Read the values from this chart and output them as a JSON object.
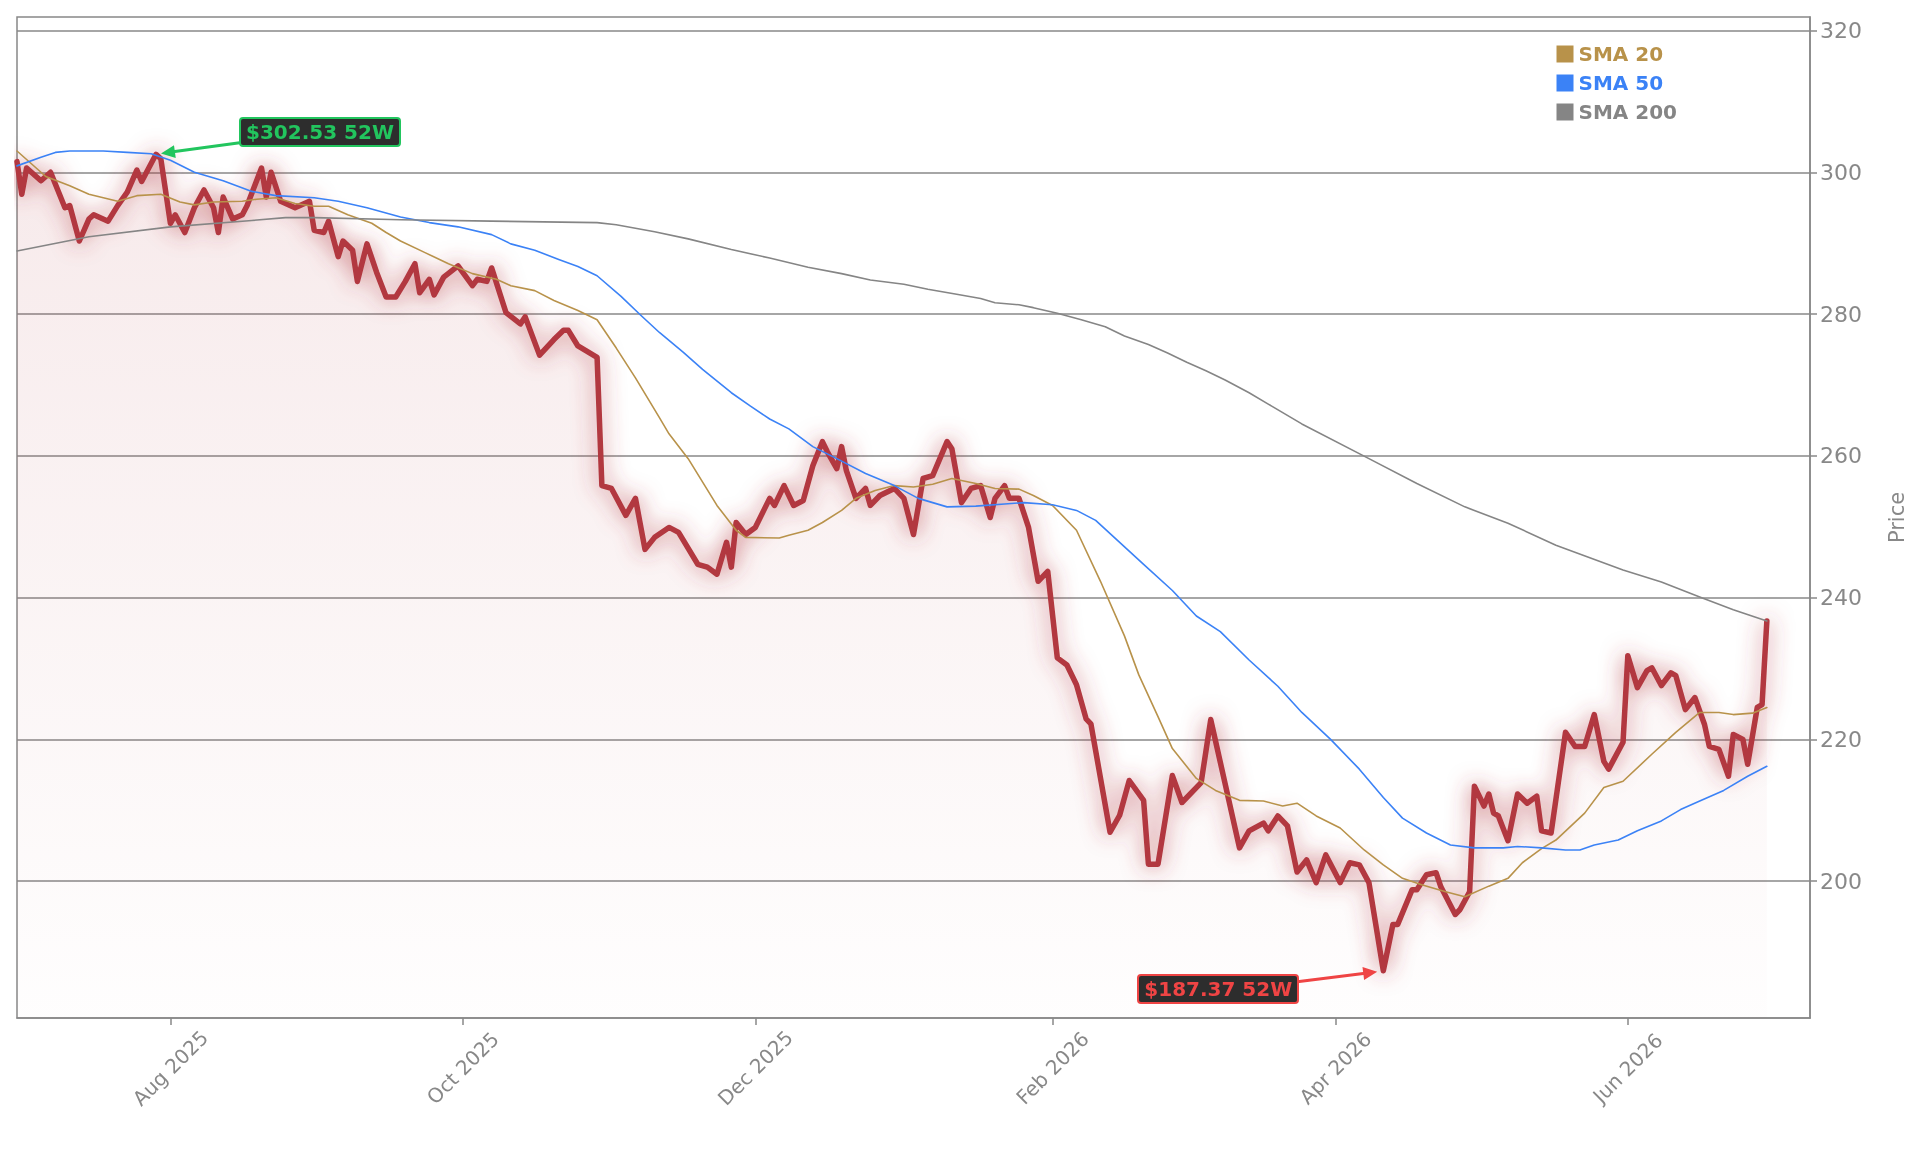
{
  "chart_data": {
    "type": "line",
    "ylabel": "Price",
    "xlim": [
      "2025-06-30",
      "2026-07-09"
    ],
    "xticks": [
      {
        "value": "2025-08-01",
        "label": "Aug 2025"
      },
      {
        "value": "2025-10-01",
        "label": "Oct 2025"
      },
      {
        "value": "2025-12-01",
        "label": "Dec 2025"
      },
      {
        "value": "2026-02-01",
        "label": "Feb 2026"
      },
      {
        "value": "2026-04-01",
        "label": "Apr 2026"
      },
      {
        "value": "2026-06-01",
        "label": "Jun 2026"
      }
    ],
    "ylim": [
      180.7,
      321.9
    ],
    "yticks": [
      200,
      220,
      240,
      260,
      280,
      300,
      320
    ],
    "grid": "y",
    "legend": "top right",
    "marker": "none",
    "annotations": [
      "$302.53 52W",
      "$187.37 52W"
    ],
    "series": [
      {
        "type": "area",
        "color": "#b2373f",
        "x": [
          "2025-06-30",
          "2025-07-01",
          "2025-07-02",
          "2025-07-05",
          "2025-07-07",
          "2025-07-10",
          "2025-07-11",
          "2025-07-13",
          "2025-07-15",
          "2025-07-16",
          "2025-07-19",
          "2025-07-21",
          "2025-07-23",
          "2025-07-25",
          "2025-07-26",
          "2025-07-29",
          "2025-07-30",
          "2025-08-01",
          "2025-08-02",
          "2025-08-04",
          "2025-08-06",
          "2025-08-08",
          "2025-08-10",
          "2025-08-11",
          "2025-08-12",
          "2025-08-14",
          "2025-08-16",
          "2025-08-17",
          "2025-08-20",
          "2025-08-21",
          "2025-08-22",
          "2025-08-24",
          "2025-08-27",
          "2025-08-30",
          "2025-08-31",
          "2025-09-02",
          "2025-09-03",
          "2025-09-05",
          "2025-09-06",
          "2025-09-08",
          "2025-09-09",
          "2025-09-11",
          "2025-09-13",
          "2025-09-15",
          "2025-09-17",
          "2025-09-19",
          "2025-09-21",
          "2025-09-22",
          "2025-09-24",
          "2025-09-25",
          "2025-09-27",
          "2025-09-30",
          "2025-10-03",
          "2025-10-04",
          "2025-10-06",
          "2025-10-07",
          "2025-10-10",
          "2025-10-13",
          "2025-10-14",
          "2025-10-17",
          "2025-10-20",
          "2025-10-22",
          "2025-10-23",
          "2025-10-25",
          "2025-10-29",
          "2025-10-30",
          "2025-11-01",
          "2025-11-04",
          "2025-11-06",
          "2025-11-08",
          "2025-11-10",
          "2025-11-13",
          "2025-11-15",
          "2025-11-19",
          "2025-11-21",
          "2025-11-23",
          "2025-11-25",
          "2025-11-26",
          "2025-11-27",
          "2025-11-29",
          "2025-12-01",
          "2025-12-04",
          "2025-12-05",
          "2025-12-07",
          "2025-12-09",
          "2025-12-11",
          "2025-12-13",
          "2025-12-15",
          "2025-12-16",
          "2025-12-18",
          "2025-12-19",
          "2025-12-20",
          "2025-12-22",
          "2025-12-24",
          "2025-12-25",
          "2025-12-27",
          "2025-12-30",
          "2026-01-01",
          "2026-01-03",
          "2026-01-05",
          "2026-01-07",
          "2026-01-10",
          "2026-01-11",
          "2026-01-13",
          "2026-01-15",
          "2026-01-17",
          "2026-01-19",
          "2026-01-20",
          "2026-01-22",
          "2026-01-23",
          "2026-01-25",
          "2026-01-27",
          "2026-01-29",
          "2026-01-31",
          "2026-02-02",
          "2026-02-04",
          "2026-02-06",
          "2026-02-08",
          "2026-02-09",
          "2026-02-13",
          "2026-02-15",
          "2026-02-17",
          "2026-02-20",
          "2026-02-21",
          "2026-02-23",
          "2026-02-26",
          "2026-02-28",
          "2026-03-04",
          "2026-03-06",
          "2026-03-12",
          "2026-03-14",
          "2026-03-17",
          "2026-03-18",
          "2026-03-20",
          "2026-03-22",
          "2026-03-24",
          "2026-03-26",
          "2026-03-28",
          "2026-03-30",
          "2026-04-02",
          "2026-04-04",
          "2026-04-06",
          "2026-04-08",
          "2026-04-11",
          "2026-04-13",
          "2026-04-14",
          "2026-04-17",
          "2026-04-18",
          "2026-04-20",
          "2026-04-22",
          "2026-04-23",
          "2026-04-26",
          "2026-04-27",
          "2026-04-29",
          "2026-04-30",
          "2026-05-02",
          "2026-05-03",
          "2026-05-04",
          "2026-05-05",
          "2026-05-07",
          "2026-05-09",
          "2026-05-11",
          "2026-05-13",
          "2026-05-14",
          "2026-05-16",
          "2026-05-19",
          "2026-05-21",
          "2026-05-23",
          "2026-05-25",
          "2026-05-27",
          "2026-05-28",
          "2026-05-31",
          "2026-06-01",
          "2026-06-03",
          "2026-06-05",
          "2026-06-06",
          "2026-06-08",
          "2026-06-10",
          "2026-06-11",
          "2026-06-13",
          "2026-06-15",
          "2026-06-17",
          "2026-06-18",
          "2026-06-20",
          "2026-06-22",
          "2026-06-23",
          "2026-06-25",
          "2026-06-26",
          "2026-06-28",
          "2026-06-29",
          "2026-06-30"
        ],
        "values": [
          301.5,
          296.9,
          300.6,
          298.8,
          300.0,
          295.0,
          295.3,
          290.3,
          293.4,
          294.0,
          293.1,
          295.3,
          297.2,
          300.3,
          298.7,
          302.53,
          301.9,
          292.8,
          294.0,
          291.5,
          295.0,
          297.5,
          295.0,
          291.5,
          296.5,
          293.4,
          294.0,
          295.3,
          300.6,
          296.5,
          300.0,
          295.9,
          295.0,
          295.9,
          291.8,
          291.5,
          293.1,
          288.1,
          290.3,
          289.0,
          284.6,
          289.9,
          285.9,
          282.4,
          282.4,
          284.6,
          287.1,
          283.0,
          284.9,
          282.7,
          285.2,
          286.8,
          284.0,
          284.9,
          284.6,
          286.5,
          280.2,
          278.6,
          279.6,
          274.2,
          276.4,
          277.7,
          277.7,
          275.5,
          273.9,
          255.8,
          255.4,
          251.6,
          254.0,
          246.8,
          248.5,
          249.9,
          249.2,
          244.7,
          244.3,
          243.3,
          247.8,
          244.3,
          250.6,
          248.9,
          249.9,
          254.0,
          253.0,
          255.8,
          253.0,
          253.7,
          258.6,
          262.0,
          260.6,
          258.2,
          261.3,
          257.9,
          254.0,
          255.4,
          253.0,
          254.4,
          255.4,
          254.0,
          248.9,
          256.8,
          257.2,
          262.0,
          261.0,
          253.4,
          255.4,
          255.8,
          251.3,
          254.0,
          255.8,
          254.0,
          254.0,
          249.9,
          242.3,
          243.7,
          231.5,
          230.5,
          227.7,
          222.9,
          222.2,
          206.9,
          209.3,
          214.2,
          211.4,
          202.4,
          202.4,
          214.9,
          211.1,
          213.9,
          222.8,
          204.7,
          207.1,
          208.2,
          207.1,
          209.2,
          207.8,
          201.3,
          203.0,
          199.8,
          203.7,
          199.8,
          202.6,
          202.3,
          199.8,
          187.37,
          193.9,
          193.9,
          198.8,
          198.8,
          200.9,
          201.2,
          199.2,
          195.3,
          196.0,
          198.5,
          213.4,
          210.6,
          212.3,
          209.6,
          209.2,
          205.7,
          212.3,
          211.0,
          212.0,
          207.1,
          206.8,
          221.0,
          219.0,
          219.0,
          223.5,
          216.9,
          215.8,
          219.6,
          231.8,
          227.3,
          229.7,
          230.1,
          227.6,
          229.4,
          229.0,
          224.2,
          225.9,
          222.1,
          219.0,
          218.6,
          214.8,
          220.7,
          220.0,
          216.5,
          224.5,
          224.9,
          236.7
        ]
      },
      {
        "name": "SMA 20",
        "type": "line",
        "color": "#b8924a",
        "x": [
          "2025-06-30",
          "2025-07-06",
          "2025-07-11",
          "2025-07-15",
          "2025-07-21",
          "2025-07-25",
          "2025-07-30",
          "2025-08-03",
          "2025-08-06",
          "2025-08-10",
          "2025-08-16",
          "2025-08-19",
          "2025-08-23",
          "2025-08-27",
          "2025-08-31",
          "2025-09-03",
          "2025-09-07",
          "2025-09-12",
          "2025-09-15",
          "2025-09-18",
          "2025-09-23",
          "2025-09-28",
          "2025-10-03",
          "2025-10-08",
          "2025-10-11",
          "2025-10-16",
          "2025-10-20",
          "2025-10-25",
          "2025-10-29",
          "2025-11-02",
          "2025-11-06",
          "2025-11-11",
          "2025-11-13",
          "2025-11-17",
          "2025-11-23",
          "2025-11-27",
          "2025-11-29",
          "2025-12-06",
          "2025-12-08",
          "2025-12-12",
          "2025-12-15",
          "2025-12-19",
          "2025-12-22",
          "2025-12-26",
          "2025-12-30",
          "2026-01-03",
          "2026-01-07",
          "2026-01-11",
          "2026-01-16",
          "2026-01-20",
          "2026-01-25",
          "2026-01-28",
          "2026-02-01",
          "2026-02-06",
          "2026-02-11",
          "2026-02-16",
          "2026-02-19",
          "2026-02-23",
          "2026-02-26",
          "2026-03-03",
          "2026-03-07",
          "2026-03-12",
          "2026-03-17",
          "2026-03-21",
          "2026-03-24",
          "2026-03-28",
          "2026-04-02",
          "2026-04-07",
          "2026-04-11",
          "2026-04-15",
          "2026-04-19",
          "2026-04-24",
          "2026-04-28",
          "2026-05-03",
          "2026-05-07",
          "2026-05-10",
          "2026-05-14",
          "2026-05-17",
          "2026-05-23",
          "2026-05-27",
          "2026-05-31",
          "2026-06-06",
          "2026-06-11",
          "2026-06-16",
          "2026-06-20",
          "2026-06-23",
          "2026-06-27",
          "2026-06-30"
        ],
        "values": [
          303.0,
          299.4,
          298.1,
          296.9,
          295.9,
          296.7,
          296.9,
          295.8,
          295.4,
          295.8,
          295.9,
          296.2,
          296.4,
          295.6,
          295.2,
          295.2,
          294.0,
          292.8,
          291.5,
          290.3,
          288.7,
          287.1,
          285.7,
          284.9,
          284.0,
          283.3,
          281.9,
          280.5,
          279.2,
          275.2,
          271.0,
          265.4,
          263.1,
          259.6,
          253.0,
          249.5,
          248.5,
          248.4,
          248.8,
          249.5,
          250.6,
          252.3,
          254.0,
          255.1,
          255.8,
          255.6,
          256.0,
          256.8,
          256.1,
          255.4,
          255.3,
          254.4,
          253.0,
          249.5,
          242.3,
          234.6,
          229.1,
          223.2,
          218.7,
          214.5,
          212.8,
          211.4,
          211.3,
          210.6,
          211.0,
          209.2,
          207.5,
          204.4,
          202.3,
          200.4,
          199.5,
          198.5,
          197.8,
          199.3,
          200.4,
          202.6,
          204.6,
          205.8,
          209.6,
          213.2,
          214.1,
          217.9,
          221.0,
          223.8,
          223.8,
          223.5,
          223.7,
          224.5
        ]
      },
      {
        "name": "SMA 50",
        "type": "line",
        "color": "#3b82f6",
        "x": [
          "2025-06-30",
          "2025-07-05",
          "2025-07-08",
          "2025-07-11",
          "2025-07-18",
          "2025-07-23",
          "2025-07-28",
          "2025-08-01",
          "2025-08-06",
          "2025-08-12",
          "2025-08-18",
          "2025-08-23",
          "2025-08-31",
          "2025-09-05",
          "2025-09-11",
          "2025-09-18",
          "2025-09-24",
          "2025-09-30",
          "2025-10-07",
          "2025-10-11",
          "2025-10-16",
          "2025-10-21",
          "2025-10-25",
          "2025-10-29",
          "2025-11-03",
          "2025-11-07",
          "2025-11-11",
          "2025-11-16",
          "2025-11-20",
          "2025-11-26",
          "2025-11-30",
          "2025-12-04",
          "2025-12-08",
          "2025-12-13",
          "2025-12-18",
          "2025-12-24",
          "2025-12-30",
          "2026-01-04",
          "2026-01-10",
          "2026-01-16",
          "2026-01-22",
          "2026-01-26",
          "2026-02-01",
          "2026-02-06",
          "2026-02-10",
          "2026-02-15",
          "2026-02-20",
          "2026-02-26",
          "2026-03-03",
          "2026-03-08",
          "2026-03-14",
          "2026-03-20",
          "2026-03-25",
          "2026-03-31",
          "2026-04-06",
          "2026-04-11",
          "2026-04-15",
          "2026-04-20",
          "2026-04-25",
          "2026-04-30",
          "2026-05-06",
          "2026-05-09",
          "2026-05-14",
          "2026-05-19",
          "2026-05-22",
          "2026-05-25",
          "2026-05-30",
          "2026-06-03",
          "2026-06-08",
          "2026-06-12",
          "2026-06-16",
          "2026-06-21",
          "2026-06-26",
          "2026-06-30"
        ],
        "values": [
          300.9,
          302.1,
          302.8,
          303.0,
          303.0,
          302.8,
          302.6,
          301.7,
          300.0,
          298.8,
          297.3,
          296.7,
          296.4,
          295.9,
          295.0,
          293.7,
          292.9,
          292.3,
          291.2,
          289.9,
          289.0,
          287.7,
          286.7,
          285.4,
          282.5,
          279.9,
          277.4,
          274.6,
          272.2,
          268.9,
          267.0,
          265.2,
          263.8,
          261.3,
          259.6,
          257.5,
          255.8,
          254.0,
          252.8,
          252.9,
          253.2,
          253.4,
          253.1,
          252.3,
          250.9,
          247.8,
          244.7,
          241.0,
          237.4,
          235.2,
          231.2,
          227.5,
          223.8,
          220.0,
          215.8,
          211.8,
          208.9,
          206.8,
          205.1,
          204.7,
          204.7,
          204.9,
          204.7,
          204.4,
          204.4,
          205.1,
          205.8,
          207.1,
          208.5,
          210.1,
          211.3,
          212.8,
          214.8,
          216.2
        ]
      },
      {
        "name": "SMA 200",
        "type": "line",
        "color": "#858585",
        "x": [
          "2025-06-30",
          "2025-07-15",
          "2025-08-01",
          "2025-08-18",
          "2025-08-25",
          "2025-08-31",
          "2025-09-18",
          "2025-10-07",
          "2025-10-29",
          "2025-11-02",
          "2025-11-10",
          "2025-11-17",
          "2025-11-26",
          "2025-12-04",
          "2025-12-12",
          "2025-12-19",
          "2025-12-25",
          "2026-01-01",
          "2026-01-06",
          "2026-01-12",
          "2026-01-17",
          "2026-01-20",
          "2026-01-25",
          "2026-01-28",
          "2026-02-02",
          "2026-02-07",
          "2026-02-12",
          "2026-02-16",
          "2026-02-21",
          "2026-02-25",
          "2026-03-01",
          "2026-03-05",
          "2026-03-09",
          "2026-03-14",
          "2026-03-18",
          "2026-03-25",
          "2026-04-08",
          "2026-04-18",
          "2026-04-28",
          "2026-05-07",
          "2026-05-17",
          "2026-05-31",
          "2026-06-08",
          "2026-06-16",
          "2026-06-23",
          "2026-06-30"
        ],
        "values": [
          288.9,
          290.9,
          292.3,
          293.2,
          293.6,
          293.6,
          293.3,
          293.1,
          292.9,
          292.6,
          291.6,
          290.6,
          289.1,
          287.9,
          286.6,
          285.7,
          284.8,
          284.2,
          283.5,
          282.8,
          282.2,
          281.6,
          281.3,
          280.9,
          280.1,
          279.2,
          278.2,
          276.9,
          275.7,
          274.5,
          273.2,
          272.0,
          270.7,
          268.9,
          267.3,
          264.5,
          259.6,
          256.1,
          252.8,
          250.5,
          247.4,
          243.9,
          242.2,
          240.1,
          238.3,
          236.7
        ]
      }
    ]
  }
}
